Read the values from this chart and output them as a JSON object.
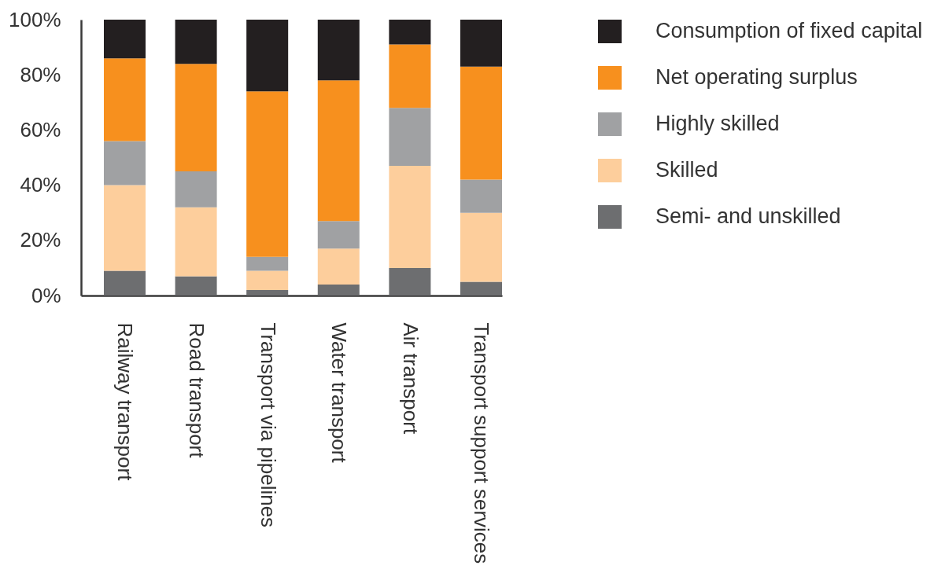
{
  "chart_data": {
    "type": "bar",
    "stacked": true,
    "categories": [
      "Railway transport",
      "Road transport",
      "Transport via pipelines",
      "Water transport",
      "Air transport",
      "Transport support services"
    ],
    "series": [
      {
        "name": "Semi- and unskilled",
        "color": "#6d6e70",
        "values": [
          9,
          7,
          2,
          4,
          10,
          5
        ]
      },
      {
        "name": "Skilled",
        "color": "#fdce9c",
        "values": [
          31,
          25,
          7,
          13,
          37,
          25
        ]
      },
      {
        "name": "Highly skilled",
        "color": "#a0a1a3",
        "values": [
          16,
          13,
          5,
          10,
          21,
          12
        ]
      },
      {
        "name": "Net operating surplus",
        "color": "#f7901e",
        "values": [
          30,
          39,
          60,
          51,
          23,
          41
        ]
      },
      {
        "name": "Consumption of fixed capital",
        "color": "#231f20",
        "values": [
          14,
          16,
          26,
          22,
          9,
          17
        ]
      }
    ],
    "ylim": [
      0,
      100
    ],
    "yticks": [
      {
        "value": 0,
        "label": "0%"
      },
      {
        "value": 20,
        "label": "20%"
      },
      {
        "value": 40,
        "label": "40%"
      },
      {
        "value": 60,
        "label": "60%"
      },
      {
        "value": 80,
        "label": "80%"
      },
      {
        "value": 100,
        "label": "100%"
      }
    ],
    "legend": "right"
  }
}
